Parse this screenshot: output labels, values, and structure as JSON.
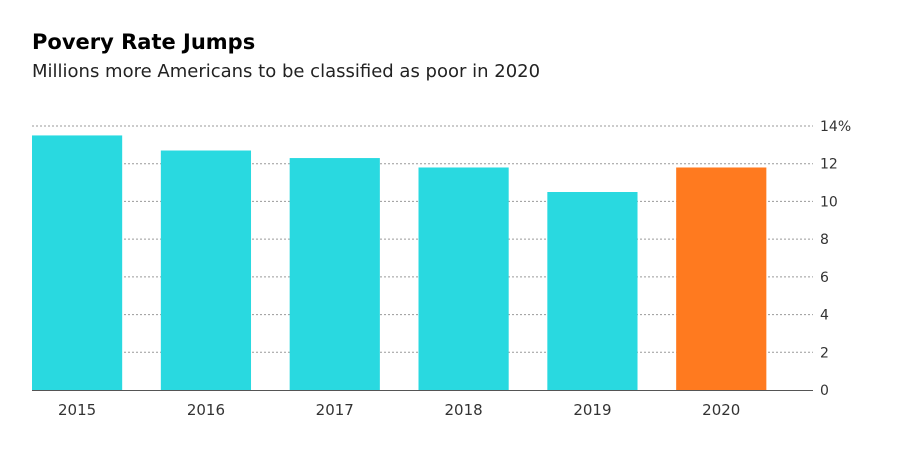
{
  "chart_data": {
    "type": "bar",
    "title": "Povery Rate Jumps",
    "subtitle": "Millions more Americans to be classified as poor in 2020",
    "categories": [
      "2015",
      "2016",
      "2017",
      "2018",
      "2019",
      "2020"
    ],
    "values": [
      13.5,
      12.7,
      12.3,
      11.8,
      10.5,
      11.8
    ],
    "ylim": [
      0,
      14
    ],
    "yticks": [
      0,
      2,
      4,
      6,
      8,
      10,
      12,
      14
    ],
    "ytick_labels": [
      "0",
      "2",
      "4",
      "6",
      "8",
      "10",
      "12",
      "14%"
    ],
    "xlabel": "",
    "ylabel": "",
    "grid": true,
    "y_axis_position": "right",
    "colors": [
      "#29d9e0",
      "#29d9e0",
      "#29d9e0",
      "#29d9e0",
      "#29d9e0",
      "#ff7a1f"
    ]
  }
}
